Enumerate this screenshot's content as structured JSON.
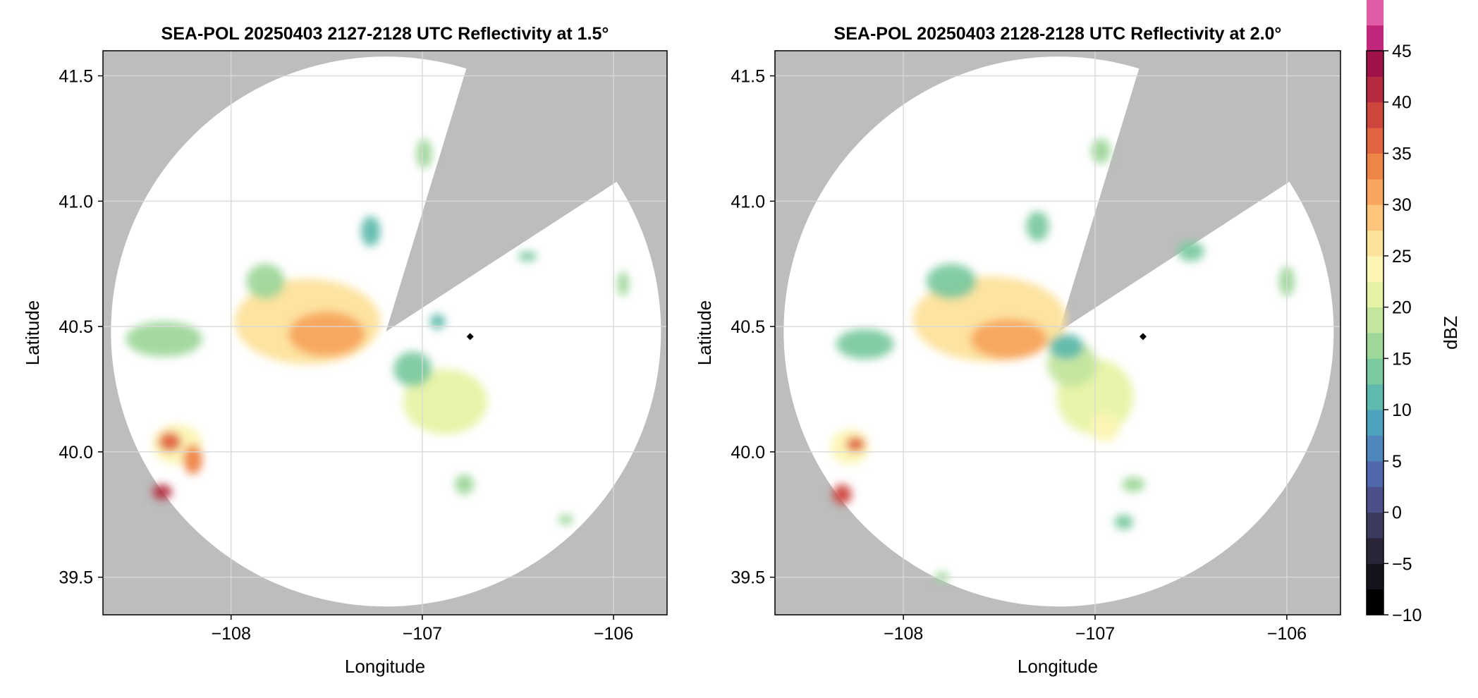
{
  "chart_data": [
    {
      "type": "heatmap",
      "title": "SEA-POL 20250403 2127-2128 UTC Reflectivity at 1.5°",
      "xlabel": "Longitude",
      "ylabel": "Latitude",
      "xlim": [
        -108.67,
        -105.72
      ],
      "ylim": [
        39.35,
        41.6
      ],
      "x_ticks": [
        -108,
        -107,
        -106
      ],
      "y_ticks": [
        39.5,
        40.0,
        40.5,
        41.0,
        41.5
      ],
      "x_tick_labels": [
        "−108",
        "−107",
        "−106"
      ],
      "y_tick_labels": [
        "39.5",
        "40.0",
        "40.5",
        "41.0",
        "41.5"
      ],
      "grid": true,
      "radar_site": {
        "lon": -107.19,
        "lat": 40.48
      },
      "blocked_sectors_deg": [
        [
          17,
          57
        ]
      ],
      "marker_point": {
        "lon": -106.75,
        "lat": 40.46
      },
      "echoes": [
        {
          "lon": -107.6,
          "lat": 40.52,
          "rlon": 0.38,
          "rlat": 0.17,
          "dbz": 26
        },
        {
          "lon": -107.5,
          "lat": 40.47,
          "rlon": 0.2,
          "rlat": 0.09,
          "dbz": 32
        },
        {
          "lon": -107.82,
          "lat": 40.68,
          "rlon": 0.1,
          "rlat": 0.07,
          "dbz": 15
        },
        {
          "lon": -106.88,
          "lat": 40.2,
          "rlon": 0.22,
          "rlat": 0.13,
          "dbz": 20
        },
        {
          "lon": -107.05,
          "lat": 40.33,
          "rlon": 0.1,
          "rlat": 0.07,
          "dbz": 14
        },
        {
          "lon": -108.35,
          "lat": 40.45,
          "rlon": 0.2,
          "rlat": 0.07,
          "dbz": 17
        },
        {
          "lon": -108.28,
          "lat": 40.03,
          "rlon": 0.13,
          "rlat": 0.08,
          "dbz": 24
        },
        {
          "lon": -108.32,
          "lat": 40.04,
          "rlon": 0.06,
          "rlat": 0.04,
          "dbz": 37
        },
        {
          "lon": -108.2,
          "lat": 39.97,
          "rlon": 0.05,
          "rlat": 0.06,
          "dbz": 33
        },
        {
          "lon": -108.36,
          "lat": 39.84,
          "rlon": 0.05,
          "rlat": 0.03,
          "dbz": 40
        },
        {
          "lon": -106.99,
          "lat": 41.19,
          "rlon": 0.04,
          "rlat": 0.06,
          "dbz": 15
        },
        {
          "lon": -107.27,
          "lat": 40.88,
          "rlon": 0.05,
          "rlat": 0.06,
          "dbz": 12
        },
        {
          "lon": -106.92,
          "lat": 40.52,
          "rlon": 0.04,
          "rlat": 0.03,
          "dbz": 10
        },
        {
          "lon": -106.78,
          "lat": 39.87,
          "rlon": 0.05,
          "rlat": 0.04,
          "dbz": 16
        },
        {
          "lon": -106.25,
          "lat": 39.73,
          "rlon": 0.04,
          "rlat": 0.02,
          "dbz": 15
        },
        {
          "lon": -105.95,
          "lat": 40.67,
          "rlon": 0.03,
          "rlat": 0.05,
          "dbz": 17
        },
        {
          "lon": -106.45,
          "lat": 40.78,
          "rlon": 0.05,
          "rlat": 0.02,
          "dbz": 14
        }
      ]
    },
    {
      "type": "heatmap",
      "title": "SEA-POL 20250403 2128-2128 UTC Reflectivity at 2.0°",
      "xlabel": "Longitude",
      "ylabel": "Latitude",
      "xlim": [
        -108.67,
        -105.72
      ],
      "ylim": [
        39.35,
        41.6
      ],
      "x_ticks": [
        -108,
        -107,
        -106
      ],
      "y_ticks": [
        39.5,
        40.0,
        40.5,
        41.0,
        41.5
      ],
      "x_tick_labels": [
        "−108",
        "−107",
        "−106"
      ],
      "y_tick_labels": [
        "39.5",
        "40.0",
        "40.5",
        "41.0",
        "41.5"
      ],
      "grid": true,
      "radar_site": {
        "lon": -107.19,
        "lat": 40.48
      },
      "blocked_sectors_deg": [
        [
          17,
          57
        ]
      ],
      "marker_point": {
        "lon": -106.75,
        "lat": 40.46
      },
      "echoes": [
        {
          "lon": -107.55,
          "lat": 40.53,
          "rlon": 0.4,
          "rlat": 0.17,
          "dbz": 25
        },
        {
          "lon": -107.45,
          "lat": 40.45,
          "rlon": 0.2,
          "rlat": 0.08,
          "dbz": 31
        },
        {
          "lon": -107.75,
          "lat": 40.68,
          "rlon": 0.13,
          "rlat": 0.07,
          "dbz": 14
        },
        {
          "lon": -107.0,
          "lat": 40.22,
          "rlon": 0.2,
          "rlat": 0.15,
          "dbz": 22
        },
        {
          "lon": -107.12,
          "lat": 40.35,
          "rlon": 0.13,
          "rlat": 0.09,
          "dbz": 18
        },
        {
          "lon": -106.95,
          "lat": 40.1,
          "rlon": 0.08,
          "rlat": 0.06,
          "dbz": 24
        },
        {
          "lon": -107.15,
          "lat": 40.42,
          "rlon": 0.09,
          "rlat": 0.05,
          "dbz": 10
        },
        {
          "lon": -108.2,
          "lat": 40.43,
          "rlon": 0.15,
          "rlat": 0.06,
          "dbz": 13
        },
        {
          "lon": -108.28,
          "lat": 40.02,
          "rlon": 0.1,
          "rlat": 0.07,
          "dbz": 24
        },
        {
          "lon": -108.25,
          "lat": 40.03,
          "rlon": 0.05,
          "rlat": 0.03,
          "dbz": 36
        },
        {
          "lon": -108.32,
          "lat": 39.83,
          "rlon": 0.05,
          "rlat": 0.04,
          "dbz": 38
        },
        {
          "lon": -106.97,
          "lat": 41.2,
          "rlon": 0.05,
          "rlat": 0.05,
          "dbz": 15
        },
        {
          "lon": -107.3,
          "lat": 40.9,
          "rlon": 0.06,
          "rlat": 0.06,
          "dbz": 14
        },
        {
          "lon": -106.5,
          "lat": 40.8,
          "rlon": 0.07,
          "rlat": 0.04,
          "dbz": 13
        },
        {
          "lon": -106.0,
          "lat": 40.68,
          "rlon": 0.04,
          "rlat": 0.06,
          "dbz": 17
        },
        {
          "lon": -106.8,
          "lat": 39.87,
          "rlon": 0.06,
          "rlat": 0.03,
          "dbz": 15
        },
        {
          "lon": -106.85,
          "lat": 39.72,
          "rlon": 0.05,
          "rlat": 0.03,
          "dbz": 14
        },
        {
          "lon": -107.8,
          "lat": 39.5,
          "rlon": 0.04,
          "rlat": 0.02,
          "dbz": 17
        }
      ]
    }
  ],
  "colorbar": {
    "label": "dBZ",
    "min": -10,
    "max": 45,
    "step": 2.5,
    "ticks": [
      -10,
      -5,
      0,
      5,
      10,
      15,
      20,
      25,
      30,
      35,
      40,
      45
    ],
    "tick_labels": [
      "−10",
      "−5",
      "0",
      "5",
      "10",
      "15",
      "20",
      "25",
      "30",
      "35",
      "40",
      "45"
    ],
    "colors": [
      "#000000",
      "#15131c",
      "#2a2638",
      "#3c3b5e",
      "#4b4f8a",
      "#5168ad",
      "#4f87bd",
      "#4fa2bc",
      "#5fbaad",
      "#7ccaa0",
      "#9ed79a",
      "#c3e59e",
      "#e6f3a4",
      "#fcf6b4",
      "#fde29a",
      "#fbc67c",
      "#f7a55f",
      "#ee8448",
      "#e0643f",
      "#cd473f",
      "#b52b3f",
      "#a0124a",
      "#c2267a",
      "#e05da6",
      "#f09fca",
      "#c9a2d6",
      "#9e79bc",
      "#7a4a9a",
      "#5a2b75",
      "#3d0e4d"
    ]
  },
  "colors": {
    "no_coverage": "#bdbdbd",
    "coverage": "#ffffff",
    "grid": "#d9d9d9",
    "marker": "#000000"
  }
}
